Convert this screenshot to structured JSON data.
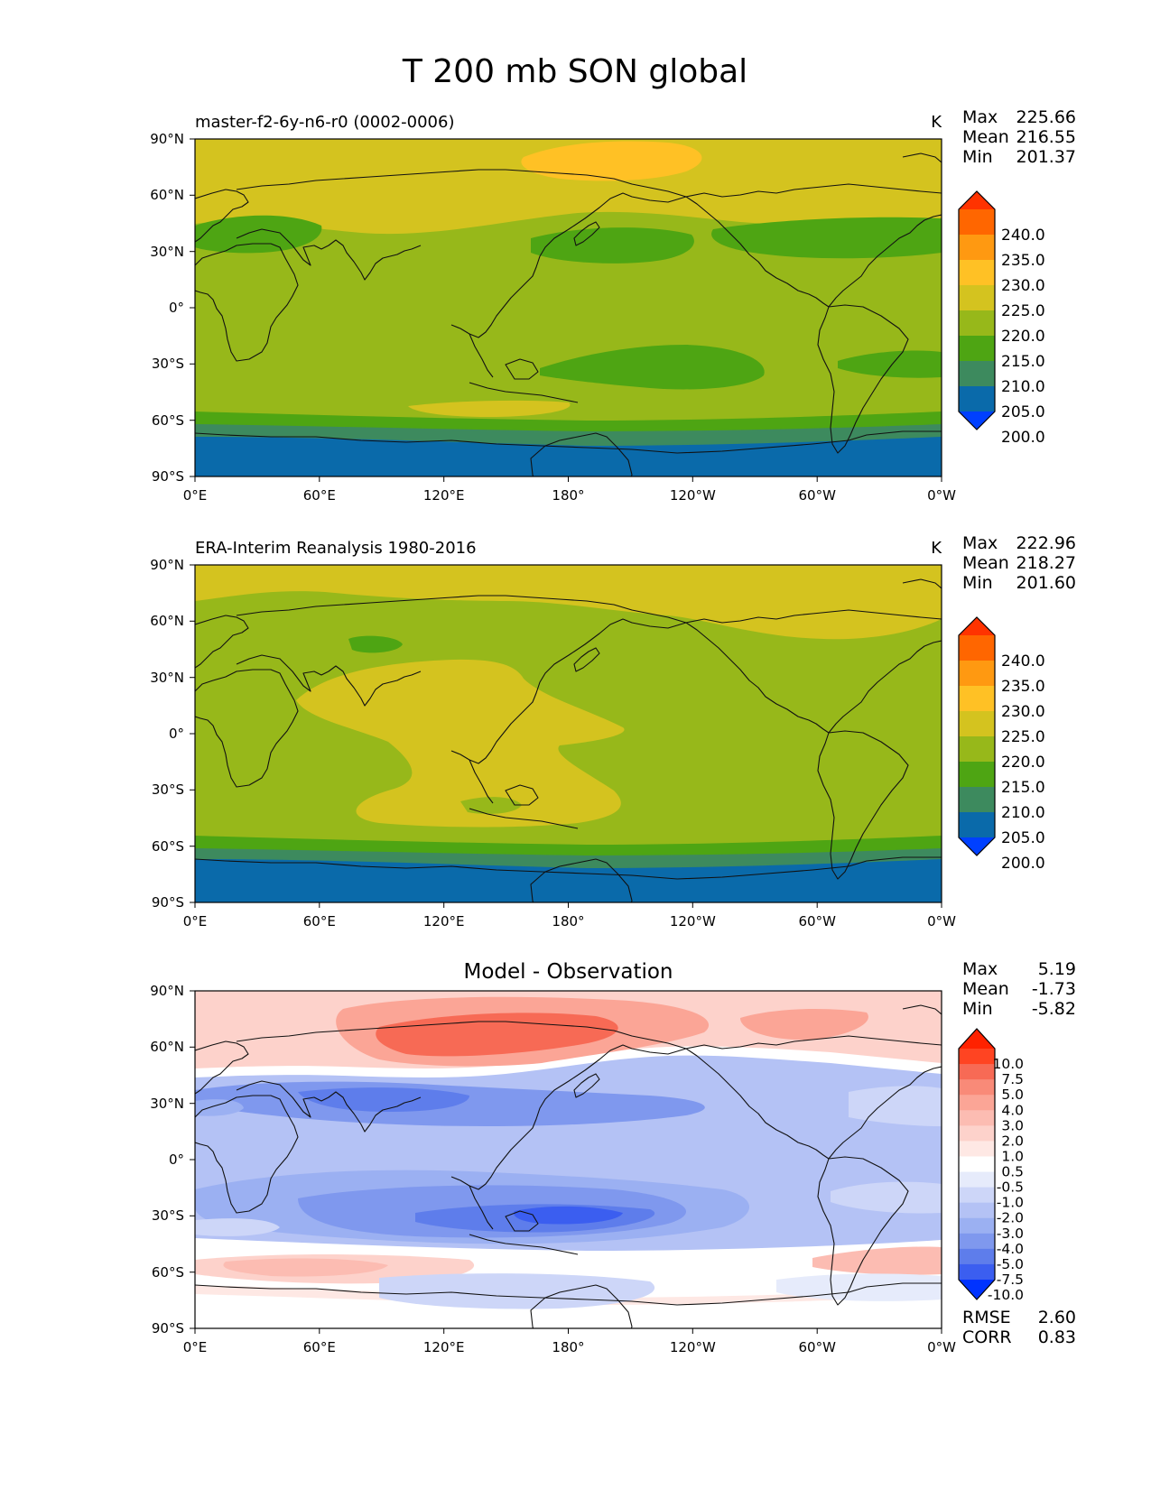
{
  "figure": {
    "title": "T 200 mb SON global"
  },
  "chart_data": [
    {
      "type": "heatmap",
      "title": "master-f2-6y-n6-r0 (0002-0006)",
      "units": "K",
      "stats": {
        "max": "225.66",
        "mean": "216.55",
        "min": "201.37"
      },
      "stat_labels": {
        "max": "Max",
        "mean": "Mean",
        "min": "Min"
      },
      "x_ticks": [
        "0°E",
        "60°E",
        "120°E",
        "180°",
        "120°W",
        "60°W",
        "0°W"
      ],
      "y_ticks": [
        "90°N",
        "60°N",
        "30°N",
        "0°",
        "30°S",
        "60°S",
        "90°S"
      ],
      "xlim": [
        0,
        360
      ],
      "ylim": [
        -90,
        90
      ],
      "colorbar": {
        "levels": [
          "240.0",
          "235.0",
          "230.0",
          "225.0",
          "220.0",
          "215.0",
          "210.0",
          "205.0",
          "200.0"
        ],
        "colors": [
          "#ff3300",
          "#ff6600",
          "#ff9911",
          "#ffc125",
          "#d4c31f",
          "#97b81a",
          "#4ea513",
          "#3d8a5e",
          "#0a6aaa",
          "#0040ff"
        ],
        "extend": "both"
      }
    },
    {
      "type": "heatmap",
      "title": "ERA-Interim Reanalysis 1980-2016",
      "units": "K",
      "stats": {
        "max": "222.96",
        "mean": "218.27",
        "min": "201.60"
      },
      "stat_labels": {
        "max": "Max",
        "mean": "Mean",
        "min": "Min"
      },
      "x_ticks": [
        "0°E",
        "60°E",
        "120°E",
        "180°",
        "120°W",
        "60°W",
        "0°W"
      ],
      "y_ticks": [
        "90°N",
        "60°N",
        "30°N",
        "0°",
        "30°S",
        "60°S",
        "90°S"
      ],
      "xlim": [
        0,
        360
      ],
      "ylim": [
        -90,
        90
      ],
      "colorbar": {
        "levels": [
          "240.0",
          "235.0",
          "230.0",
          "225.0",
          "220.0",
          "215.0",
          "210.0",
          "205.0",
          "200.0"
        ],
        "colors": [
          "#ff3300",
          "#ff6600",
          "#ff9911",
          "#ffc125",
          "#d4c31f",
          "#97b81a",
          "#4ea513",
          "#3d8a5e",
          "#0a6aaa",
          "#0040ff"
        ],
        "extend": "both"
      }
    },
    {
      "type": "heatmap",
      "title": "Model - Observation",
      "units": "",
      "stats": {
        "max": "5.19",
        "mean": "-1.73",
        "min": "-5.82"
      },
      "stat_labels": {
        "max": "Max",
        "mean": "Mean",
        "min": "Min"
      },
      "metrics": {
        "rmse": "2.60",
        "corr": "0.83"
      },
      "metric_labels": {
        "rmse": "RMSE",
        "corr": "CORR"
      },
      "x_ticks": [
        "0°E",
        "60°E",
        "120°E",
        "180°",
        "120°W",
        "60°W",
        "0°W"
      ],
      "y_ticks": [
        "90°N",
        "60°N",
        "30°N",
        "0°",
        "30°S",
        "60°S",
        "90°S"
      ],
      "xlim": [
        0,
        360
      ],
      "ylim": [
        -90,
        90
      ],
      "colorbar": {
        "levels": [
          "10.0",
          "7.5",
          "5.0",
          "4.0",
          "3.0",
          "2.0",
          "1.0",
          "0.5",
          "-0.5",
          "-1.0",
          "-2.0",
          "-3.0",
          "-4.0",
          "-5.0",
          "-7.5",
          "-10.0"
        ],
        "colors": [
          "#ff2200",
          "#ff4422",
          "#f76a55",
          "#f98a78",
          "#fba596",
          "#fcbcb2",
          "#fdd2cb",
          "#fee8e4",
          "#ffffff",
          "#e6ebfb",
          "#cdd6f8",
          "#b4c2f5",
          "#9bb0f2",
          "#7f98ee",
          "#5e7deb",
          "#3b5ef0",
          "#0033ff"
        ],
        "extend": "both"
      }
    }
  ]
}
